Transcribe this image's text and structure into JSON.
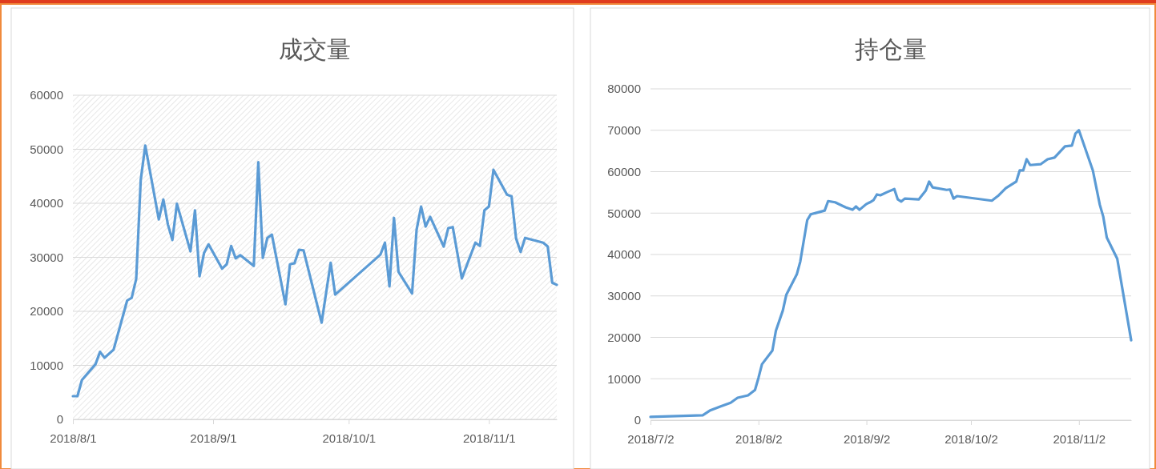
{
  "chart_data": [
    {
      "type": "line",
      "title": "成交量",
      "grid": "y",
      "x": [
        "2018-08-01",
        "2018-08-02",
        "2018-08-03",
        "2018-08-06",
        "2018-08-07",
        "2018-08-08",
        "2018-08-10",
        "2018-08-13",
        "2018-08-14",
        "2018-08-15",
        "2018-08-16",
        "2018-08-17",
        "2018-08-20",
        "2018-08-21",
        "2018-08-22",
        "2018-08-23",
        "2018-08-24",
        "2018-08-27",
        "2018-08-28",
        "2018-08-29",
        "2018-08-30",
        "2018-08-31",
        "2018-09-03",
        "2018-09-04",
        "2018-09-05",
        "2018-09-06",
        "2018-09-07",
        "2018-09-10",
        "2018-09-11",
        "2018-09-12",
        "2018-09-13",
        "2018-09-14",
        "2018-09-17",
        "2018-09-18",
        "2018-09-19",
        "2018-09-20",
        "2018-09-21",
        "2018-09-25",
        "2018-09-27",
        "2018-09-28",
        "2018-10-08",
        "2018-10-09",
        "2018-10-10",
        "2018-10-11",
        "2018-10-12",
        "2018-10-15",
        "2018-10-16",
        "2018-10-17",
        "2018-10-18",
        "2018-10-19",
        "2018-10-22",
        "2018-10-23",
        "2018-10-24",
        "2018-10-26",
        "2018-10-29",
        "2018-10-30",
        "2018-10-31",
        "2018-11-01",
        "2018-11-02",
        "2018-11-05",
        "2018-11-06",
        "2018-11-07",
        "2018-11-08",
        "2018-11-09",
        "2018-11-13",
        "2018-11-14",
        "2018-11-15",
        "2018-11-16"
      ],
      "series": [
        {
          "color": "#5b9bd5",
          "values": [
            4300,
            4300,
            7300,
            10200,
            12500,
            11400,
            12900,
            22000,
            22500,
            26000,
            44300,
            50700,
            37000,
            40700,
            36100,
            33200,
            39900,
            31100,
            38700,
            26500,
            30800,
            32400,
            27900,
            28700,
            32100,
            29800,
            30400,
            28400,
            47600,
            29900,
            33600,
            34200,
            21300,
            28700,
            28900,
            31400,
            31300,
            17900,
            29000,
            23100,
            30500,
            32700,
            24600,
            37300,
            27300,
            23300,
            35100,
            39400,
            35700,
            37500,
            32000,
            35400,
            35600,
            26100,
            32700,
            32100,
            38700,
            39400,
            46200,
            41600,
            41300,
            33500,
            31000,
            33600,
            32700,
            32000,
            25300,
            24900
          ]
        }
      ],
      "xlim": [
        "2018-08-01",
        "2018-11-16"
      ],
      "xticks": [
        {
          "value": "2018-08-01",
          "label": "2018/8/1"
        },
        {
          "value": "2018-09-01",
          "label": "2018/9/1"
        },
        {
          "value": "2018-10-01",
          "label": "2018/10/1"
        },
        {
          "value": "2018-11-01",
          "label": "2018/11/1"
        }
      ],
      "ylim": [
        0,
        60000
      ],
      "yticks": [
        0,
        10000,
        20000,
        30000,
        40000,
        50000,
        60000
      ]
    },
    {
      "type": "line",
      "title": "持仓量",
      "grid": "y",
      "x": [
        "2018-07-02",
        "2018-07-17",
        "2018-07-19",
        "2018-07-22",
        "2018-07-25",
        "2018-07-27",
        "2018-07-30",
        "2018-08-01",
        "2018-08-02",
        "2018-08-03",
        "2018-08-06",
        "2018-08-07",
        "2018-08-09",
        "2018-08-10",
        "2018-08-13",
        "2018-08-14",
        "2018-08-16",
        "2018-08-17",
        "2018-08-21",
        "2018-08-22",
        "2018-08-24",
        "2018-08-27",
        "2018-08-29",
        "2018-08-30",
        "2018-08-31",
        "2018-09-02",
        "2018-09-03",
        "2018-09-04",
        "2018-09-05",
        "2018-09-06",
        "2018-09-08",
        "2018-09-10",
        "2018-09-11",
        "2018-09-12",
        "2018-09-13",
        "2018-09-17",
        "2018-09-19",
        "2018-09-20",
        "2018-09-21",
        "2018-09-25",
        "2018-09-26",
        "2018-09-27",
        "2018-09-28",
        "2018-10-08",
        "2018-10-10",
        "2018-10-12",
        "2018-10-15",
        "2018-10-16",
        "2018-10-17",
        "2018-10-18",
        "2018-10-19",
        "2018-10-22",
        "2018-10-24",
        "2018-10-26",
        "2018-10-29",
        "2018-10-31",
        "2018-11-01",
        "2018-11-02",
        "2018-11-06",
        "2018-11-08",
        "2018-11-09",
        "2018-11-10",
        "2018-11-13",
        "2018-11-17"
      ],
      "series": [
        {
          "color": "#5b9bd5",
          "values": [
            800,
            1200,
            2300,
            3300,
            4200,
            5400,
            6000,
            7300,
            10200,
            13500,
            16800,
            21600,
            26500,
            30300,
            35200,
            38300,
            48300,
            49700,
            50600,
            52900,
            52600,
            51400,
            50800,
            51600,
            50800,
            52200,
            52600,
            53100,
            54500,
            54300,
            55100,
            55800,
            53300,
            52800,
            53500,
            53300,
            55400,
            57600,
            56200,
            55600,
            55700,
            53500,
            54100,
            53000,
            54300,
            56000,
            57600,
            60300,
            60300,
            63000,
            61600,
            61800,
            63000,
            63400,
            66100,
            66300,
            69200,
            70000,
            60300,
            52000,
            49100,
            44100,
            39000,
            19300
          ]
        }
      ],
      "xlim": [
        "2018-07-02",
        "2018-11-17"
      ],
      "xticks": [
        {
          "value": "2018-07-02",
          "label": "2018/7/2"
        },
        {
          "value": "2018-08-02",
          "label": "2018/8/2"
        },
        {
          "value": "2018-09-02",
          "label": "2018/9/2"
        },
        {
          "value": "2018-10-02",
          "label": "2018/10/2"
        },
        {
          "value": "2018-11-02",
          "label": "2018/11/2"
        }
      ],
      "ylim": [
        0,
        80000
      ],
      "yticks": [
        0,
        10000,
        20000,
        30000,
        40000,
        50000,
        60000,
        70000,
        80000
      ]
    }
  ]
}
